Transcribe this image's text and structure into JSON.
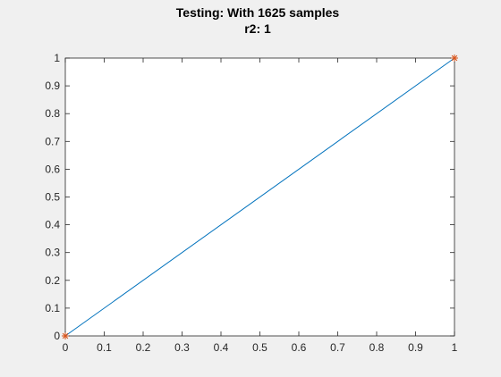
{
  "chart_data": {
    "type": "line",
    "title": "Testing: With 1625 samples",
    "subtitle": "r2: 1",
    "xlabel": "",
    "ylabel": "",
    "xlim": [
      0,
      1
    ],
    "ylim": [
      0,
      1
    ],
    "x_ticks": [
      0,
      0.1,
      0.2,
      0.3,
      0.4,
      0.5,
      0.6,
      0.7,
      0.8,
      0.9,
      1
    ],
    "y_ticks": [
      0,
      0.1,
      0.2,
      0.3,
      0.4,
      0.5,
      0.6,
      0.7,
      0.8,
      0.9,
      1
    ],
    "x_tick_labels": [
      "0",
      "0.1",
      "0.2",
      "0.3",
      "0.4",
      "0.5",
      "0.6",
      "0.7",
      "0.8",
      "0.9",
      "1"
    ],
    "y_tick_labels": [
      "0",
      "0.1",
      "0.2",
      "0.3",
      "0.4",
      "0.5",
      "0.6",
      "0.7",
      "0.8",
      "0.9",
      "1"
    ],
    "grid": false,
    "series": [
      {
        "kind": "line",
        "color": "#0072bd",
        "x": [
          0,
          1
        ],
        "y": [
          0,
          1
        ]
      },
      {
        "kind": "markers",
        "marker": "asterisk",
        "color": "#d95319",
        "x": [
          0,
          1
        ],
        "y": [
          0,
          1
        ]
      }
    ],
    "colors": {
      "background": "#f0f0f0",
      "axes_background": "#ffffff",
      "axes_color": "#262626"
    }
  }
}
